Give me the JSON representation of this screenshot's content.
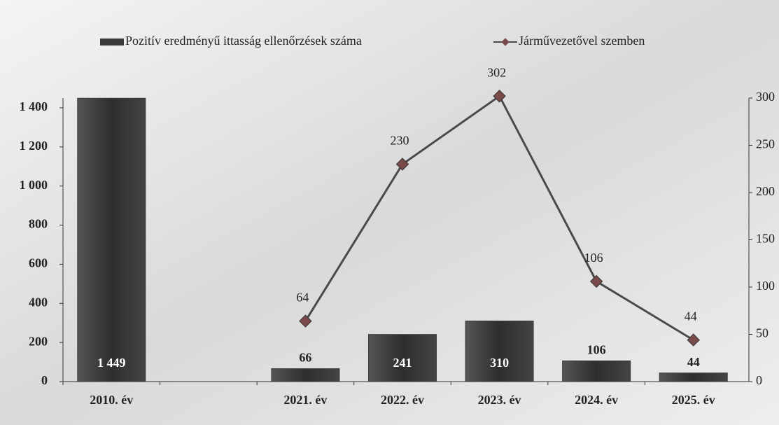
{
  "chart_data": {
    "type": "bar",
    "categories": [
      "2010. év",
      null,
      "2021. év",
      "2022. év",
      "2023. év",
      "2024. év",
      "2025. év"
    ],
    "series": [
      {
        "name": "Pozitív eredményű ittasság ellenőrzések száma",
        "type": "bar",
        "color": "#3a3a3a",
        "values": [
          1449,
          null,
          66,
          241,
          310,
          106,
          44
        ],
        "value_labels": [
          "1 449",
          null,
          "66",
          "241",
          "310",
          "106",
          "44"
        ]
      },
      {
        "name": "Járművezetővel szemben",
        "type": "line",
        "axis": "y2",
        "color": "#4a4a4a",
        "marker_color": "#7a4a4a",
        "values": [
          null,
          null,
          64,
          230,
          302,
          106,
          44
        ]
      }
    ],
    "ylim": [
      0,
      1450
    ],
    "yticks": [
      0,
      200,
      400,
      600,
      800,
      {
        "value": 1000,
        "label": "1 000"
      },
      {
        "value": 1200,
        "label": "1 200"
      },
      {
        "value": 1400,
        "label": "1 400"
      }
    ],
    "y2lim": [
      0,
      300
    ],
    "y2ticks": [
      0,
      50,
      100,
      150,
      200,
      250,
      300
    ],
    "legend": "top"
  }
}
